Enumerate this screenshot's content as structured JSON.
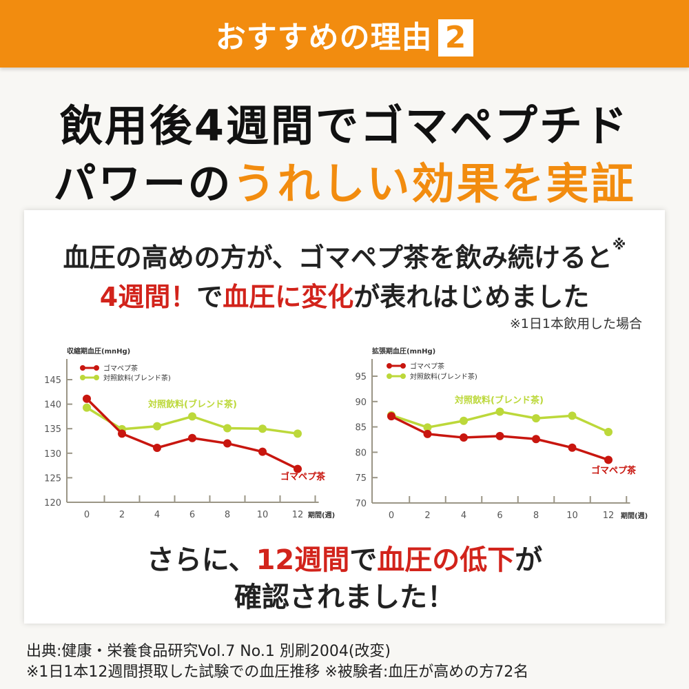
{
  "header": {
    "title": "おすすめの理由",
    "number": "2"
  },
  "headline": {
    "line1": "飲用後4週間でゴマペプチド",
    "line2_black": "パワーの",
    "line2_orange": "うれしい効果を実証"
  },
  "lead": {
    "line1": "血圧の高めの方が、ゴマペプ茶を飲み続けると",
    "line1_mark": "※",
    "line2_red1": "4週間！",
    "line2_mid": "で",
    "line2_red2": "血圧に変化",
    "line2_end": "が表れはじめました",
    "note": "※1日1本飲用した場合"
  },
  "conclusion": {
    "line1_a": "さらに、",
    "line1_red1": "12週間",
    "line1_b": "で",
    "line1_red2": "血圧の低下",
    "line1_c": "が",
    "line2": "確認されました！"
  },
  "footer": {
    "line1": "出典:健康・栄養食品研究Vol.7 No.1 別刷2004(改変)",
    "line2": "※1日1本12週間摂取した試験での血圧推移 ※被験者:血圧が高めの方72名"
  },
  "colors": {
    "orange": "#f28c0f",
    "red": "#c8160f",
    "green": "#bcd83a",
    "axis": "#9a9585"
  },
  "chart_data": [
    {
      "type": "line",
      "title": "収縮期血圧(mnHg)",
      "xlabel": "期間(週)",
      "x": [
        0,
        2,
        4,
        6,
        8,
        10,
        12
      ],
      "ylim": [
        120,
        145
      ],
      "yticks": [
        120,
        125,
        130,
        135,
        140,
        145
      ],
      "legend_position": "top-left",
      "series": [
        {
          "name": "ゴマペプ茶",
          "label": "ゴマペプ茶",
          "color": "#c8160f",
          "values": [
            141.1,
            134.0,
            131.1,
            133.1,
            132.0,
            130.3,
            126.8
          ]
        },
        {
          "name": "対照飲料(ブレンド茶)",
          "label": "対照飲料(ブレンド茶)",
          "color": "#bcd83a",
          "values": [
            139.3,
            134.9,
            135.5,
            137.5,
            135.1,
            135.0,
            134.0
          ]
        }
      ]
    },
    {
      "type": "line",
      "title": "拡張期血圧(mnHg)",
      "xlabel": "期間(週)",
      "x": [
        0,
        2,
        4,
        6,
        8,
        10,
        12
      ],
      "ylim": [
        70,
        95
      ],
      "yticks": [
        70,
        75,
        80,
        85,
        90,
        95
      ],
      "legend_position": "top-left",
      "series": [
        {
          "name": "ゴマペプ茶",
          "label": "ゴマペプ茶",
          "color": "#c8160f",
          "values": [
            87.1,
            83.6,
            82.9,
            83.2,
            82.6,
            80.9,
            78.5
          ]
        },
        {
          "name": "対照飲料(ブレンド茶)",
          "label": "対照飲料(ブレンド茶)",
          "color": "#bcd83a",
          "values": [
            87.3,
            84.9,
            86.2,
            88.0,
            86.7,
            87.2,
            84.0
          ]
        }
      ]
    }
  ]
}
